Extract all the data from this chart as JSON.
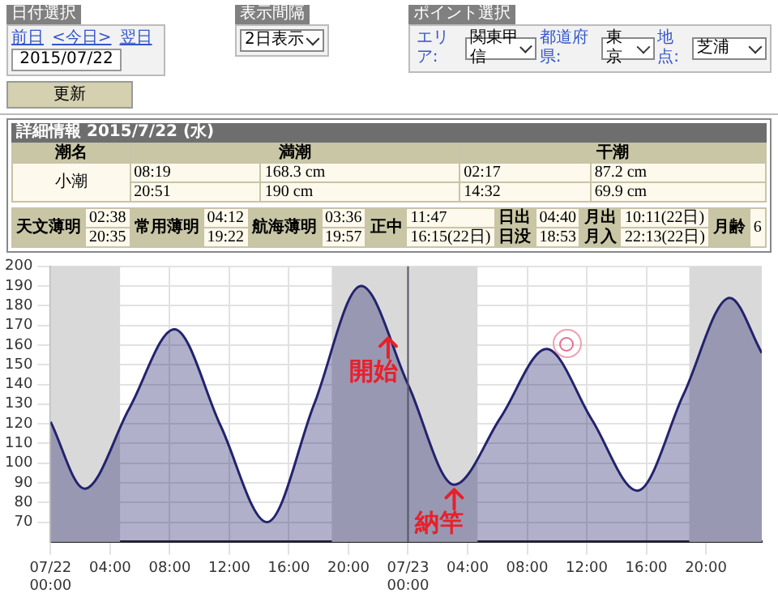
{
  "chart_data": {
    "type": "area",
    "annotations": [
      "日付選択",
      "前日",
      "<今日>",
      "翌日",
      "2015/07/22",
      "表示間隔",
      "2日表示",
      "ポイント選択",
      "エリア:",
      "関東甲信",
      "都道府県:",
      "東京",
      "地点:",
      "芝浦",
      "更新",
      "詳細情報 2015/7/22 (水)",
      "潮名",
      "満潮",
      "干潮",
      "小潮",
      "08:19",
      "168.3 cm",
      "02:17",
      "87.2 cm",
      "20:51",
      "190 cm",
      "14:32",
      "69.9 cm",
      "天文薄明",
      "02:38",
      "20:35",
      "常用薄明",
      "04:12",
      "19:22",
      "航海薄明",
      "03:36",
      "19:57",
      "正中",
      "11:47",
      "16:15(22日)",
      "日出",
      "04:40",
      "日没",
      "18:53",
      "月出",
      "10:11(22日)",
      "月入",
      "22:13(22日)",
      "月齢",
      "6",
      {
        "text": "開始",
        "x": "2015-07-22T22:40",
        "y": 166
      },
      {
        "text": "納竿",
        "x": "2015-07-23T03:06",
        "y": 89
      }
    ],
    "x": [
      "2015-07-22T00:00",
      "2015-07-22T02:17",
      "2015-07-22T05:18",
      "2015-07-22T08:19",
      "2015-07-22T11:25",
      "2015-07-22T14:32",
      "2015-07-22T17:42",
      "2015-07-22T20:51",
      "2015-07-23T00:00",
      "2015-07-23T03:06",
      "2015-07-23T06:12",
      "2015-07-23T09:18",
      "2015-07-23T12:21",
      "2015-07-23T15:24",
      "2015-07-23T18:30",
      "2015-07-23T21:36",
      "2015-07-23T23:45"
    ],
    "series": [
      {
        "color": "#23236e",
        "values": [
          121,
          87,
          128,
          168,
          119,
          70,
          130,
          190,
          140,
          89,
          123,
          158,
          122,
          86,
          135,
          184,
          156
        ]
      }
    ],
    "xlim": [
      "2015-07-22T00:00",
      "2015-07-23T23:45"
    ],
    "xticks": [
      {
        "value": "2015-07-22T00:00",
        "label": "07/22\n00:00"
      },
      {
        "value": "2015-07-22T04:00",
        "label": "04:00"
      },
      {
        "value": "2015-07-22T08:00",
        "label": "08:00"
      },
      {
        "value": "2015-07-22T12:00",
        "label": "12:00"
      },
      {
        "value": "2015-07-22T16:00",
        "label": "16:00"
      },
      {
        "value": "2015-07-22T20:00",
        "label": "20:00"
      },
      {
        "value": "2015-07-23T00:00",
        "label": "07/23\n00:00"
      },
      {
        "value": "2015-07-23T04:00",
        "label": "04:00"
      },
      {
        "value": "2015-07-23T08:00",
        "label": "08:00"
      },
      {
        "value": "2015-07-23T12:00",
        "label": "12:00"
      },
      {
        "value": "2015-07-23T16:00",
        "label": "16:00"
      },
      {
        "value": "2015-07-23T20:00",
        "label": "20:00"
      }
    ],
    "ylim": [
      60,
      200
    ],
    "yticks": [
      70,
      80,
      90,
      100,
      110,
      120,
      130,
      140,
      150,
      160,
      170,
      180,
      190,
      200
    ],
    "grid": true,
    "bands": [
      {
        "axis": "x",
        "from": "2015-07-22T00:00",
        "to": "2015-07-22T04:40",
        "color": "#d9d9d9"
      },
      {
        "axis": "x",
        "from": "2015-07-22T18:53",
        "to": "2015-07-23T04:40",
        "color": "#d9d9d9"
      },
      {
        "axis": "x",
        "from": "2015-07-23T18:53",
        "to": "2015-07-23T23:45",
        "color": "#d9d9d9"
      }
    ],
    "ref_lines": [
      {
        "axis": "x",
        "value": "2015-07-23T00:00",
        "color": "#555566"
      }
    ]
  }
}
